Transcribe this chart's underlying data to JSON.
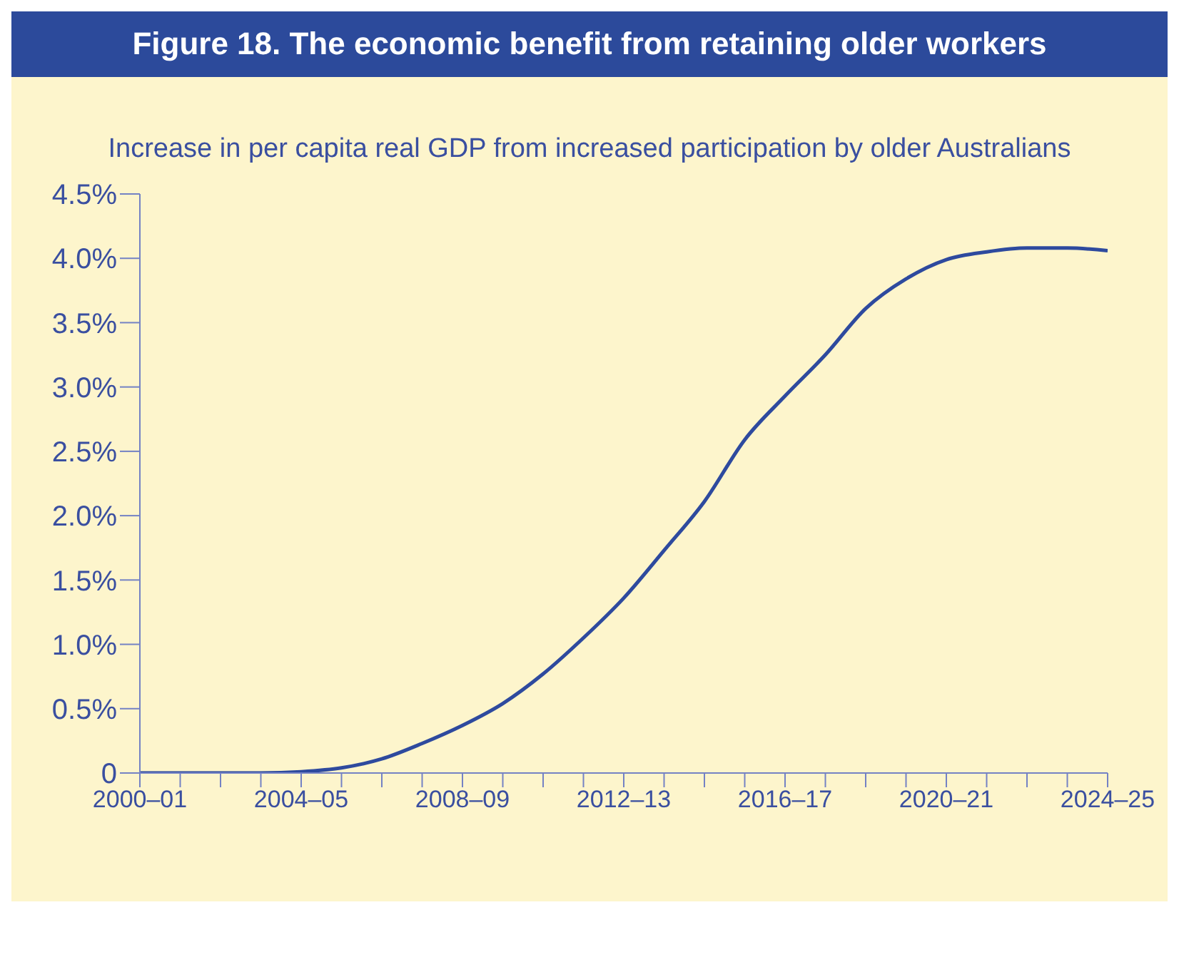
{
  "chart_data": {
    "type": "line",
    "title": "Figure 18. The economic benefit from retaining older workers",
    "subtitle": "Increase in per capita real GDP from increased participation by older Australians",
    "categories": [
      "2000–01",
      null,
      null,
      null,
      "2004–05",
      null,
      null,
      null,
      "2008–09",
      null,
      null,
      null,
      "2012–13",
      null,
      null,
      null,
      "2016–17",
      null,
      null,
      null,
      "2020–21",
      null,
      null,
      null,
      "2024–25"
    ],
    "series": [
      {
        "color": "#2e4a9e",
        "values": [
          0,
          0,
          0,
          0,
          0.01,
          0.04,
          0.11,
          0.23,
          0.37,
          0.54,
          0.77,
          1.05,
          1.36,
          1.73,
          2.11,
          2.59,
          2.93,
          3.25,
          3.61,
          3.84,
          3.99,
          4.05,
          4.08,
          4.08,
          4.06
        ]
      }
    ],
    "ylim": [
      0,
      4.5
    ],
    "yticks": [
      {
        "value": 0,
        "label": "0"
      },
      {
        "value": 0.5,
        "label": "0.5%"
      },
      {
        "value": 1,
        "label": "1.0%"
      },
      {
        "value": 1.5,
        "label": "1.5%"
      },
      {
        "value": 2,
        "label": "2.0%"
      },
      {
        "value": 2.5,
        "label": "2.5%"
      },
      {
        "value": 3,
        "label": "3.0%"
      },
      {
        "value": 3.5,
        "label": "3.5%"
      },
      {
        "value": 4,
        "label": "4.0%"
      },
      {
        "value": 4.5,
        "label": "4.5%"
      }
    ]
  }
}
